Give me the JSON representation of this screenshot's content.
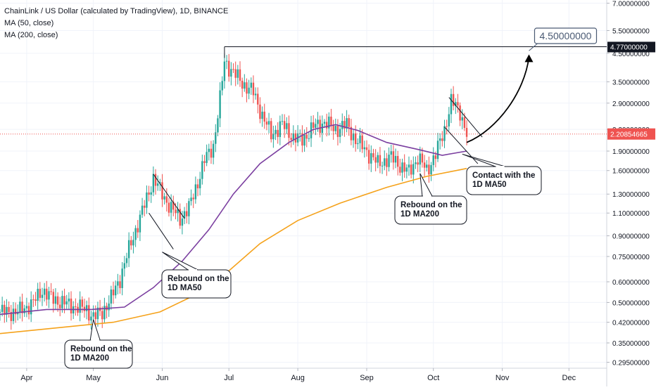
{
  "chart_data": {
    "type": "candlestick",
    "title": "ChainLink / US Dollar (calculated by TradingView), 1D, BINANCE",
    "indicators": [
      "MA (50, close)",
      "MA (200, close)"
    ],
    "y_scale": "log",
    "ylim": [
      0.28,
      7.2
    ],
    "x_range": [
      "2019-03-20",
      "2019-12-18"
    ],
    "x_ticks": [
      {
        "date": "2019-04-01",
        "label": "Apr"
      },
      {
        "date": "2019-05-01",
        "label": "May"
      },
      {
        "date": "2019-06-01",
        "label": "Jun"
      },
      {
        "date": "2019-07-01",
        "label": "Jul"
      },
      {
        "date": "2019-08-01",
        "label": "Aug"
      },
      {
        "date": "2019-09-01",
        "label": "Sep"
      },
      {
        "date": "2019-10-01",
        "label": "Oct"
      },
      {
        "date": "2019-11-01",
        "label": "Nov"
      },
      {
        "date": "2019-12-01",
        "label": "Dec"
      }
    ],
    "y_ticks": [
      "7.00000000",
      "5.50000000",
      "4.50000000",
      "3.50000000",
      "2.90000000",
      "2.30000000",
      "1.90000000",
      "1.60000000",
      "1.30000000",
      "1.10000000",
      "0.90000000",
      "0.75000000",
      "0.60000000",
      "0.50000000",
      "0.42000000",
      "0.35000000",
      "0.29500000"
    ],
    "last_price": {
      "value": "2.20854665",
      "color": "#ef5350"
    },
    "high_marker": {
      "value": "4.77000000",
      "date_from": "2019-06-29",
      "date_to": "2019-12-18"
    },
    "price_path": [
      [
        "2019-03-20",
        0.46
      ],
      [
        "2019-03-28",
        0.46
      ],
      [
        "2019-04-04",
        0.5
      ],
      [
        "2019-04-08",
        0.56
      ],
      [
        "2019-04-12",
        0.52
      ],
      [
        "2019-04-20",
        0.49
      ],
      [
        "2019-04-28",
        0.47
      ],
      [
        "2019-05-01",
        0.44
      ],
      [
        "2019-05-05",
        0.46
      ],
      [
        "2019-05-09",
        0.52
      ],
      [
        "2019-05-13",
        0.62
      ],
      [
        "2019-05-17",
        0.8
      ],
      [
        "2019-05-21",
        1.0
      ],
      [
        "2019-05-25",
        1.25
      ],
      [
        "2019-05-28",
        1.5
      ],
      [
        "2019-06-01",
        1.3
      ],
      [
        "2019-06-05",
        1.15
      ],
      [
        "2019-06-09",
        1.05
      ],
      [
        "2019-06-13",
        1.15
      ],
      [
        "2019-06-17",
        1.45
      ],
      [
        "2019-06-20",
        1.75
      ],
      [
        "2019-06-24",
        2.0
      ],
      [
        "2019-06-27",
        3.0
      ],
      [
        "2019-06-29",
        4.2
      ],
      [
        "2019-07-03",
        3.8
      ],
      [
        "2019-07-08",
        3.4
      ],
      [
        "2019-07-12",
        3.2
      ],
      [
        "2019-07-16",
        2.6
      ],
      [
        "2019-07-20",
        2.2
      ],
      [
        "2019-07-25",
        2.4
      ],
      [
        "2019-07-30",
        2.15
      ],
      [
        "2019-08-03",
        2.1
      ],
      [
        "2019-08-08",
        2.35
      ],
      [
        "2019-08-13",
        2.45
      ],
      [
        "2019-08-18",
        2.3
      ],
      [
        "2019-08-23",
        2.4
      ],
      [
        "2019-08-27",
        2.1
      ],
      [
        "2019-09-01",
        1.9
      ],
      [
        "2019-09-06",
        1.7
      ],
      [
        "2019-09-12",
        1.8
      ],
      [
        "2019-09-17",
        1.65
      ],
      [
        "2019-09-20",
        1.58
      ],
      [
        "2019-09-24",
        1.8
      ],
      [
        "2019-09-28",
        1.6
      ],
      [
        "2019-10-02",
        1.85
      ],
      [
        "2019-10-06",
        2.3
      ],
      [
        "2019-10-09",
        2.95
      ],
      [
        "2019-10-13",
        2.7
      ],
      [
        "2019-10-16",
        2.21
      ]
    ],
    "ma50": {
      "label": "MA (50, close)",
      "color": "#7b3fa0",
      "points": [
        [
          "2019-03-20",
          0.45
        ],
        [
          "2019-04-10",
          0.47
        ],
        [
          "2019-04-30",
          0.47
        ],
        [
          "2019-05-15",
          0.48
        ],
        [
          "2019-05-28",
          0.57
        ],
        [
          "2019-06-10",
          0.72
        ],
        [
          "2019-06-22",
          0.95
        ],
        [
          "2019-07-03",
          1.3
        ],
        [
          "2019-07-15",
          1.7
        ],
        [
          "2019-07-28",
          2.05
        ],
        [
          "2019-08-08",
          2.3
        ],
        [
          "2019-08-18",
          2.4
        ],
        [
          "2019-08-28",
          2.28
        ],
        [
          "2019-09-10",
          2.05
        ],
        [
          "2019-09-25",
          1.92
        ],
        [
          "2019-10-05",
          1.83
        ],
        [
          "2019-10-16",
          1.9
        ]
      ]
    },
    "ma200": {
      "label": "MA (200, close)",
      "color": "#f5a21b",
      "points": [
        [
          "2019-03-20",
          0.38
        ],
        [
          "2019-04-15",
          0.4
        ],
        [
          "2019-05-10",
          0.42
        ],
        [
          "2019-05-31",
          0.46
        ],
        [
          "2019-06-15",
          0.53
        ],
        [
          "2019-06-30",
          0.65
        ],
        [
          "2019-07-15",
          0.84
        ],
        [
          "2019-08-01",
          1.03
        ],
        [
          "2019-08-20",
          1.2
        ],
        [
          "2019-09-10",
          1.38
        ],
        [
          "2019-09-28",
          1.52
        ],
        [
          "2019-10-16",
          1.63
        ]
      ]
    },
    "annotations": [
      {
        "text": "Rebound on the 1D MA200",
        "lines": [
          "Rebound on the",
          "1D MA200"
        ]
      },
      {
        "text": "Rebound on the 1D MA50",
        "lines": [
          "Rebound on the",
          "1D MA50"
        ]
      },
      {
        "text": "Rebound on the 1D MA200",
        "lines": [
          "Rebound on the",
          "1D MA200"
        ]
      },
      {
        "text": "Contact with the 1D MA50",
        "lines": [
          "Contact with the",
          "1D MA50"
        ]
      }
    ],
    "target": {
      "value": "4.50000000"
    },
    "grid": true
  }
}
